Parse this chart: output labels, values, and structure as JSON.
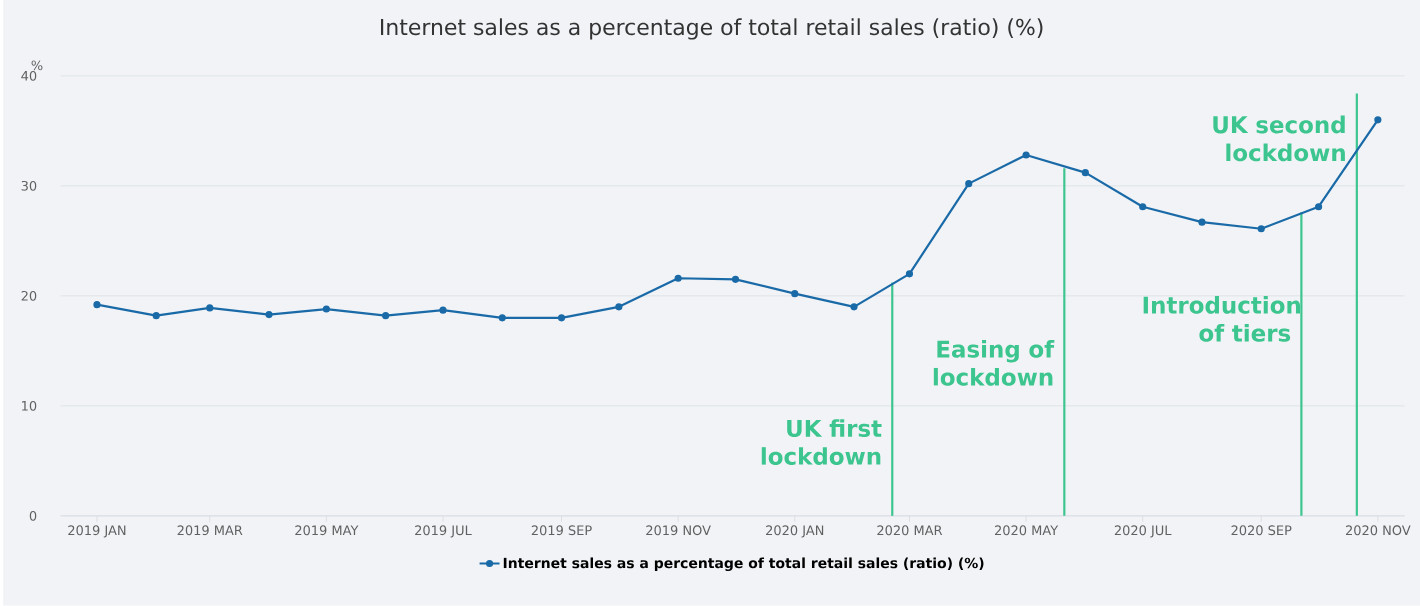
{
  "chart_data": {
    "type": "line",
    "title": "Internet sales as a percentage of total retail sales (ratio) (%)",
    "ylabel": "%",
    "x": [
      "2019-01",
      "2019-02",
      "2019-03",
      "2019-04",
      "2019-05",
      "2019-06",
      "2019-07",
      "2019-08",
      "2019-09",
      "2019-10",
      "2019-11",
      "2019-12",
      "2020-01",
      "2020-02",
      "2020-03",
      "2020-04",
      "2020-05",
      "2020-06",
      "2020-07",
      "2020-08",
      "2020-09",
      "2020-10",
      "2020-11"
    ],
    "series": [
      {
        "name": "Internet sales as a percentage of total retail sales (ratio) (%)",
        "color": "#1a6aa8",
        "values": [
          19.2,
          18.2,
          18.9,
          18.3,
          18.8,
          18.2,
          18.7,
          18.0,
          18.0,
          19.0,
          21.6,
          21.5,
          20.2,
          19.0,
          22.0,
          30.2,
          32.8,
          31.2,
          28.1,
          26.7,
          26.1,
          28.1,
          36.0
        ]
      }
    ],
    "xlim": [
      "2018-12-13",
      "2020-11-15"
    ],
    "ylim": [
      0,
      40
    ],
    "xticks": [
      {
        "value": "2019-01",
        "label": "2019 JAN"
      },
      {
        "value": "2019-03",
        "label": "2019 MAR"
      },
      {
        "value": "2019-05",
        "label": "2019 MAY"
      },
      {
        "value": "2019-07",
        "label": "2019 JUL"
      },
      {
        "value": "2019-09",
        "label": "2019 SEP"
      },
      {
        "value": "2019-11",
        "label": "2019 NOV"
      },
      {
        "value": "2020-01",
        "label": "2020 JAN"
      },
      {
        "value": "2020-03",
        "label": "2020 MAR"
      },
      {
        "value": "2020-05",
        "label": "2020 MAY"
      },
      {
        "value": "2020-07",
        "label": "2020 JUL"
      },
      {
        "value": "2020-09",
        "label": "2020 SEP"
      },
      {
        "value": "2020-11",
        "label": "2020 NOV"
      }
    ],
    "yticks": [
      0,
      10,
      20,
      30,
      40
    ],
    "ref_lines": [
      {
        "axis": "x",
        "value": "2020-02-21",
        "label": "UK first lockdown",
        "color": "#3cc58f"
      },
      {
        "axis": "x",
        "value": "2020-05-21",
        "label": "Easing of lockdown",
        "color": "#3cc58f"
      },
      {
        "axis": "x",
        "value": "2020-09-22",
        "label": "Introduction of tiers",
        "color": "#3cc58f"
      },
      {
        "axis": "x",
        "value": "2020-10-21",
        "label": "UK second lockdown",
        "color": "#3cc58f"
      }
    ],
    "grid": "y",
    "legend": "bottom",
    "marker": "circle",
    "line_style": "solid"
  }
}
